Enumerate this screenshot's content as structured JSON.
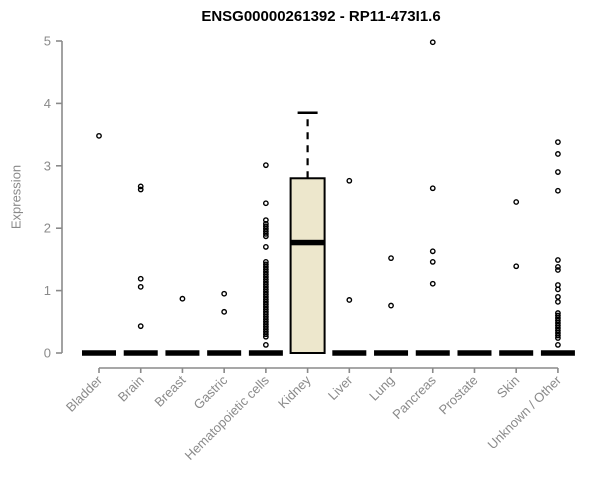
{
  "chart_data": {
    "type": "boxplot",
    "title": "ENSG00000261392 - RP11-473I1.6",
    "ylabel": "Expression",
    "xlabel": "",
    "ylim": [
      0,
      5
    ],
    "yticks": [
      0,
      1,
      2,
      3,
      4,
      5
    ],
    "grid": false,
    "legend": false,
    "colors": {
      "box_fill": "#EDE7CC",
      "box_border": "#000000",
      "median": "#000000",
      "points": "#000000",
      "axis": "#8A8A8A",
      "tick_labels": "#8A8A8A",
      "title": "#000000"
    },
    "categories": [
      "Bladder",
      "Brain",
      "Breast",
      "Gastric",
      "Hematopoietic cells",
      "Kidney",
      "Liver",
      "Lung",
      "Pancreas",
      "Prostate",
      "Skin",
      "Unknown / Other"
    ],
    "boxes": [
      {
        "label": "Bladder",
        "median": 0,
        "q1": 0,
        "q3": 0,
        "whisker_low": 0,
        "whisker_high": 0,
        "outliers": [
          3.48
        ]
      },
      {
        "label": "Brain",
        "median": 0,
        "q1": 0,
        "q3": 0,
        "whisker_low": 0,
        "whisker_high": 0,
        "outliers": [
          2.67,
          2.62,
          1.19,
          1.06,
          0.43
        ]
      },
      {
        "label": "Breast",
        "median": 0,
        "q1": 0,
        "q3": 0,
        "whisker_low": 0,
        "whisker_high": 0,
        "outliers": [
          0.87
        ]
      },
      {
        "label": "Gastric",
        "median": 0,
        "q1": 0,
        "q3": 0,
        "whisker_low": 0,
        "whisker_high": 0,
        "outliers": [
          0.95,
          0.66
        ]
      },
      {
        "label": "Hematopoietic cells",
        "median": 0,
        "q1": 0,
        "q3": 0,
        "whisker_low": 0,
        "whisker_high": 0,
        "outliers": [
          3.01,
          2.4,
          2.13,
          2.07,
          2.03,
          1.99,
          1.95,
          1.91,
          1.87,
          1.7,
          1.46,
          1.42,
          1.38,
          1.34,
          1.3,
          1.26,
          1.22,
          1.18,
          1.14,
          1.1,
          1.06,
          1.02,
          0.98,
          0.94,
          0.9,
          0.86,
          0.82,
          0.78,
          0.74,
          0.7,
          0.66,
          0.62,
          0.58,
          0.54,
          0.5,
          0.46,
          0.42,
          0.38,
          0.34,
          0.3,
          0.26,
          0.13
        ]
      },
      {
        "label": "Kidney",
        "median": 1.77,
        "q1": 0,
        "q3": 2.8,
        "whisker_low": 0,
        "whisker_high": 3.85,
        "outliers": []
      },
      {
        "label": "Liver",
        "median": 0,
        "q1": 0,
        "q3": 0,
        "whisker_low": 0,
        "whisker_high": 0,
        "outliers": [
          2.76,
          0.85
        ]
      },
      {
        "label": "Lung",
        "median": 0,
        "q1": 0,
        "q3": 0,
        "whisker_low": 0,
        "whisker_high": 0,
        "outliers": [
          1.52,
          0.76
        ]
      },
      {
        "label": "Pancreas",
        "median": 0,
        "q1": 0,
        "q3": 0,
        "whisker_low": 0,
        "whisker_high": 0,
        "outliers": [
          4.98,
          2.64,
          1.63,
          1.46,
          1.11
        ]
      },
      {
        "label": "Prostate",
        "median": 0,
        "q1": 0,
        "q3": 0,
        "whisker_low": 0,
        "whisker_high": 0,
        "outliers": []
      },
      {
        "label": "Skin",
        "median": 0,
        "q1": 0,
        "q3": 0,
        "whisker_low": 0,
        "whisker_high": 0,
        "outliers": [
          2.42,
          1.39
        ]
      },
      {
        "label": "Unknown / Other",
        "median": 0,
        "q1": 0,
        "q3": 0,
        "whisker_low": 0,
        "whisker_high": 0,
        "outliers": [
          3.38,
          3.19,
          2.9,
          2.6,
          1.49,
          1.38,
          1.33,
          1.09,
          1.02,
          0.9,
          0.82,
          0.64,
          0.6,
          0.56,
          0.52,
          0.48,
          0.44,
          0.4,
          0.36,
          0.32,
          0.28,
          0.24,
          0.13
        ]
      }
    ]
  }
}
